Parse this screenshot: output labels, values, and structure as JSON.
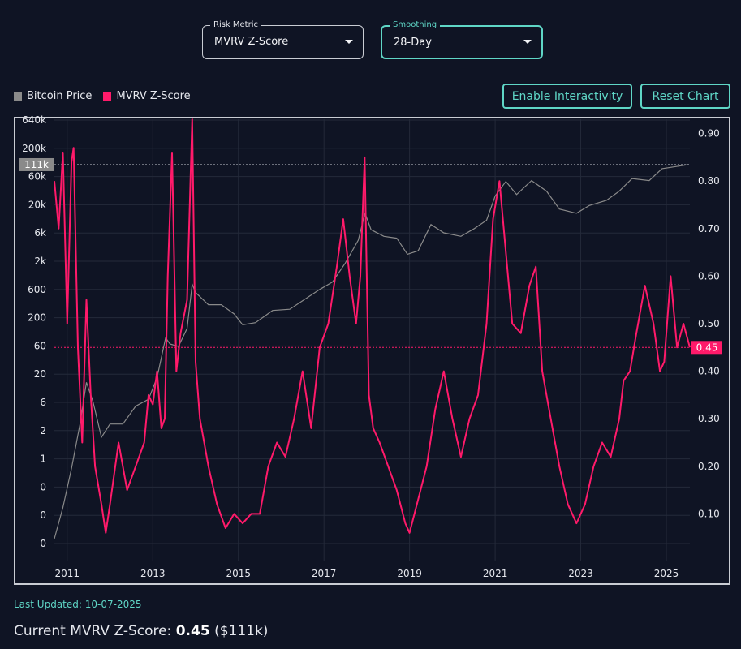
{
  "controls": {
    "risk_metric": {
      "label": "Risk Metric",
      "value": "MVRV Z-Score"
    },
    "smoothing": {
      "label": "Smoothing",
      "value": "28-Day"
    }
  },
  "legend": {
    "price_label": "Bitcoin Price",
    "metric_label": "MVRV Z-Score",
    "price_color": "#8a8a8a",
    "metric_color": "#ff1a6a"
  },
  "buttons": {
    "interactivity": "Enable Interactivity",
    "reset": "Reset Chart"
  },
  "footer": {
    "updated": "Last Updated: 10-07-2025",
    "current_prefix": "Current MVRV Z-Score:",
    "current_value": "0.45",
    "current_price": "($111k)"
  },
  "chart_data": {
    "type": "line",
    "x_ticks": [
      "2011",
      "2013",
      "2015",
      "2017",
      "2019",
      "2021",
      "2023",
      "2025"
    ],
    "x_tick_years": [
      2011,
      2013,
      2015,
      2017,
      2019,
      2021,
      2023,
      2025
    ],
    "xlim": [
      2010.7,
      2025.55
    ],
    "left_axis": {
      "scale": "log",
      "tick_labels": [
        "640k",
        "200k",
        "60k",
        "20k",
        "6k",
        "2k",
        "600",
        "200",
        "60",
        "20",
        "6",
        "2",
        "1",
        "0",
        "0",
        "0"
      ],
      "marker_label": "111k"
    },
    "right_axis": {
      "tick_labels": [
        "0.90",
        "0.80",
        "0.70",
        "0.60",
        "0.50",
        "0.40",
        "0.30",
        "0.20",
        "0.10"
      ],
      "tick_values": [
        0.9,
        0.8,
        0.7,
        0.6,
        0.5,
        0.4,
        0.3,
        0.2,
        0.1
      ],
      "ylim": [
        0.0,
        0.93
      ],
      "current_label": "0.45"
    },
    "current_value": 0.45,
    "grid": true,
    "series": [
      {
        "name": "Bitcoin Price",
        "axis": "left",
        "x": [
          2010.7,
          2010.9,
          2011.1,
          2011.3,
          2011.45,
          2011.6,
          2011.8,
          2012.0,
          2012.3,
          2012.6,
          2012.9,
          2013.1,
          2013.3,
          2013.4,
          2013.6,
          2013.8,
          2013.92,
          2014.0,
          2014.3,
          2014.6,
          2014.9,
          2015.1,
          2015.4,
          2015.8,
          2016.2,
          2016.6,
          2016.9,
          2017.2,
          2017.5,
          2017.8,
          2017.96,
          2018.1,
          2018.4,
          2018.7,
          2018.95,
          2019.2,
          2019.5,
          2019.8,
          2020.2,
          2020.5,
          2020.8,
          2021.0,
          2021.25,
          2021.5,
          2021.85,
          2022.2,
          2022.5,
          2022.9,
          2023.2,
          2023.6,
          2023.9,
          2024.2,
          2024.6,
          2024.9,
          2025.1,
          2025.3,
          2025.5
        ],
        "y": [
          0.06,
          0.2,
          0.9,
          5,
          25,
          12,
          3,
          5,
          5,
          10,
          13,
          30,
          140,
          110,
          100,
          200,
          1100,
          800,
          500,
          500,
          350,
          230,
          250,
          400,
          420,
          650,
          900,
          1200,
          2500,
          6000,
          17000,
          9000,
          7000,
          6500,
          3500,
          4000,
          11000,
          8000,
          7000,
          9300,
          13000,
          33000,
          58000,
          35000,
          60000,
          40000,
          20000,
          17000,
          23000,
          28000,
          40000,
          65000,
          60000,
          95000,
          100000,
          105000,
          111000
        ]
      },
      {
        "name": "MVRV Z-Score",
        "axis": "right",
        "x": [
          2010.7,
          2010.8,
          2010.9,
          2011.0,
          2011.1,
          2011.15,
          2011.25,
          2011.35,
          2011.45,
          2011.55,
          2011.65,
          2011.8,
          2011.9,
          2012.0,
          2012.2,
          2012.4,
          2012.6,
          2012.8,
          2012.9,
          2013.0,
          2013.1,
          2013.2,
          2013.28,
          2013.35,
          2013.45,
          2013.55,
          2013.65,
          2013.8,
          2013.92,
          2014.0,
          2014.1,
          2014.3,
          2014.5,
          2014.7,
          2014.9,
          2015.1,
          2015.3,
          2015.5,
          2015.7,
          2015.9,
          2016.1,
          2016.3,
          2016.5,
          2016.7,
          2016.9,
          2017.1,
          2017.3,
          2017.45,
          2017.6,
          2017.75,
          2017.85,
          2017.95,
          2018.05,
          2018.15,
          2018.3,
          2018.5,
          2018.7,
          2018.9,
          2019.0,
          2019.2,
          2019.4,
          2019.6,
          2019.8,
          2020.0,
          2020.2,
          2020.4,
          2020.6,
          2020.8,
          2020.95,
          2021.1,
          2021.25,
          2021.4,
          2021.6,
          2021.8,
          2021.95,
          2022.1,
          2022.3,
          2022.5,
          2022.7,
          2022.9,
          2023.1,
          2023.3,
          2023.5,
          2023.7,
          2023.9,
          2024.0,
          2024.15,
          2024.3,
          2024.5,
          2024.7,
          2024.85,
          2024.95,
          2025.1,
          2025.25,
          2025.4,
          2025.55
        ],
        "y": [
          0.8,
          0.7,
          0.86,
          0.5,
          0.84,
          0.87,
          0.45,
          0.25,
          0.55,
          0.35,
          0.2,
          0.12,
          0.06,
          0.12,
          0.25,
          0.15,
          0.2,
          0.25,
          0.35,
          0.33,
          0.4,
          0.28,
          0.3,
          0.6,
          0.86,
          0.4,
          0.48,
          0.55,
          0.93,
          0.42,
          0.3,
          0.2,
          0.12,
          0.07,
          0.1,
          0.08,
          0.1,
          0.1,
          0.2,
          0.25,
          0.22,
          0.3,
          0.4,
          0.28,
          0.45,
          0.5,
          0.62,
          0.72,
          0.6,
          0.5,
          0.6,
          0.85,
          0.35,
          0.28,
          0.25,
          0.2,
          0.15,
          0.08,
          0.06,
          0.13,
          0.2,
          0.32,
          0.4,
          0.3,
          0.22,
          0.3,
          0.35,
          0.5,
          0.72,
          0.8,
          0.65,
          0.5,
          0.48,
          0.58,
          0.62,
          0.4,
          0.3,
          0.2,
          0.12,
          0.08,
          0.12,
          0.2,
          0.25,
          0.22,
          0.3,
          0.38,
          0.4,
          0.48,
          0.58,
          0.5,
          0.4,
          0.42,
          0.6,
          0.45,
          0.5,
          0.45
        ]
      }
    ]
  }
}
